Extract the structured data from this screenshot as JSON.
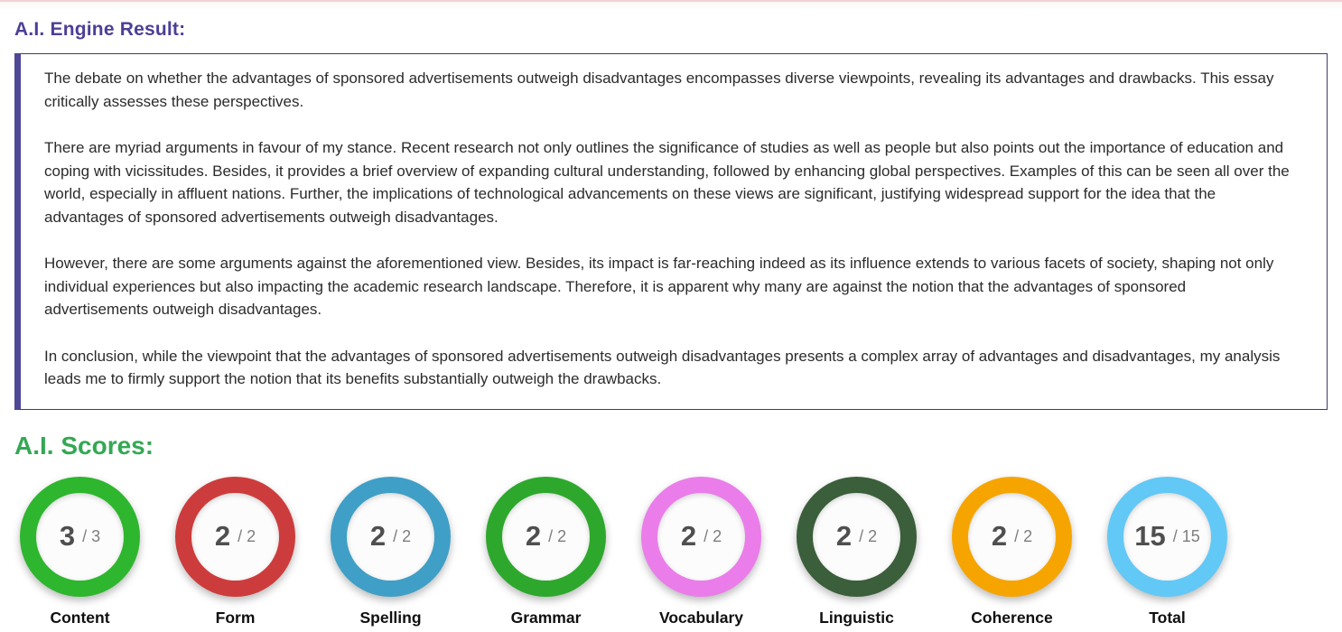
{
  "headings": {
    "engine_result": "A.I. Engine Result:",
    "scores": "A.I. Scores:"
  },
  "essay": {
    "paragraphs": [
      "The debate on whether the advantages of sponsored advertisements outweigh disadvantages encompasses diverse viewpoints, revealing its advantages and drawbacks. This essay critically assesses these perspectives.",
      "There are myriad arguments in favour of my stance. Recent research not only outlines the significance of studies as well as people but also points out the importance of education and coping with vicissitudes. Besides, it provides a brief overview of expanding cultural understanding, followed by enhancing global perspectives. Examples of this can be seen all over the world, especially in affluent nations. Further, the implications of technological advancements on these views are significant, justifying widespread support for the idea that the advantages of sponsored advertisements outweigh disadvantages.",
      "However, there are some arguments against the aforementioned view. Besides, its impact is far-reaching indeed as its influence extends to various facets of society, shaping not only individual experiences but also impacting the academic research landscape. Therefore, it is apparent why many are against the notion that the advantages of sponsored advertisements outweigh disadvantages.",
      "In conclusion, while the viewpoint that the advantages of sponsored advertisements outweigh disadvantages presents a complex array of advantages and disadvantages, my analysis leads me to firmly support the notion that its benefits substantially outweigh the drawbacks."
    ]
  },
  "scores": {
    "items": [
      {
        "label": "Content",
        "score": "3",
        "max": "3",
        "color": "#2eb62e"
      },
      {
        "label": "Form",
        "score": "2",
        "max": "2",
        "color": "#cd3c3c"
      },
      {
        "label": "Spelling",
        "score": "2",
        "max": "2",
        "color": "#3f9fc6"
      },
      {
        "label": "Grammar",
        "score": "2",
        "max": "2",
        "color": "#2da82d"
      },
      {
        "label": "Vocabulary",
        "score": "2",
        "max": "2",
        "color": "#ea7dea"
      },
      {
        "label": "Linguistic",
        "score": "2",
        "max": "2",
        "color": "#3b5e3b"
      },
      {
        "label": "Coherence",
        "score": "2",
        "max": "2",
        "color": "#f6a500"
      },
      {
        "label": "Total",
        "score": "15",
        "max": "15",
        "color": "#62c8f6"
      }
    ]
  },
  "colors": {
    "engine_heading": "#4c3f97",
    "scores_heading": "#34a853",
    "box_left_border": "#4e4897",
    "box_border": "#3f3c6e",
    "top_line": "#f0d3d3",
    "top_strip": "#fdf6f6",
    "inner_circle": "#fcfcfc",
    "score_number": "#4f4f4f",
    "score_max": "#7e7e7e"
  }
}
